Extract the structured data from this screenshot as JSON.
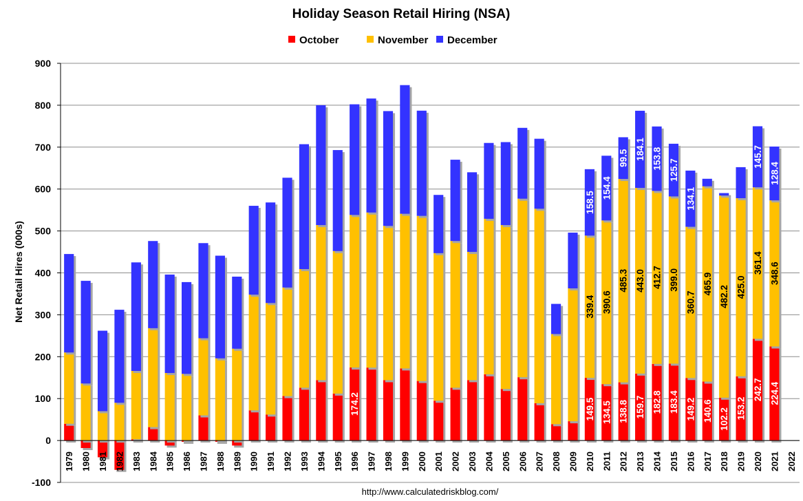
{
  "chart_data": {
    "type": "bar",
    "stacked": true,
    "title": "Holiday Season Retail Hiring (NSA)",
    "ylabel": "Net Retail Hires (000s)",
    "xlabel": "",
    "ylim": [
      -100,
      900
    ],
    "yticks": [
      -100,
      0,
      100,
      200,
      300,
      400,
      500,
      600,
      700,
      800,
      900
    ],
    "grid": "horizontal",
    "legend": "top-center",
    "source": "http://www.calculatedriskblog.com/",
    "categories": [
      "1979",
      "1980",
      "1981",
      "1982",
      "1983",
      "1984",
      "1985",
      "1986",
      "1987",
      "1988",
      "1989",
      "1990",
      "1991",
      "1992",
      "1993",
      "1994",
      "1995",
      "1996",
      "1997",
      "1998",
      "1999",
      "2000",
      "2001",
      "2002",
      "2003",
      "2004",
      "2005",
      "2006",
      "2007",
      "2008",
      "2009",
      "2010",
      "2011",
      "2012",
      "2013",
      "2014",
      "2015",
      "2016",
      "2017",
      "2018",
      "2019",
      "2020",
      "2021",
      "2022"
    ],
    "series": [
      {
        "name": "October",
        "color": "#ff0000",
        "values": [
          40,
          -18,
          -40,
          -70,
          3,
          32,
          -12,
          -3,
          60,
          -3,
          -12,
          72,
          62,
          106,
          126,
          144,
          112,
          174.2,
          174,
          144,
          172,
          142,
          95,
          126,
          144,
          158,
          123,
          151,
          89,
          39,
          46,
          149.5,
          134.5,
          138.8,
          159.7,
          182.8,
          183.4,
          149.2,
          140.6,
          102.2,
          153.2,
          242.7,
          224.4,
          null
        ],
        "labels": [
          null,
          null,
          null,
          null,
          null,
          null,
          null,
          null,
          null,
          null,
          null,
          null,
          null,
          null,
          null,
          null,
          null,
          "174.2",
          null,
          null,
          null,
          null,
          null,
          null,
          null,
          null,
          null,
          null,
          null,
          null,
          null,
          "149.5",
          "134.5",
          "138.8",
          "159.7",
          "182.8",
          "183.4",
          "149.2",
          "140.6",
          "102.2",
          "153.2",
          "242.7",
          "224.4",
          null
        ]
      },
      {
        "name": "November",
        "color": "#ffc000",
        "values": [
          170,
          136,
          70,
          90,
          163,
          236,
          161,
          159,
          184,
          196,
          219,
          276,
          266,
          259,
          283,
          370,
          340,
          364,
          370,
          368,
          369,
          394,
          352,
          350,
          306,
          371,
          391,
          426,
          464,
          215,
          317,
          339.4,
          390.6,
          485.3,
          443.0,
          412.7,
          399.0,
          360.7,
          465.9,
          482.2,
          425.0,
          361.4,
          348.6,
          null
        ],
        "labels": [
          null,
          null,
          null,
          null,
          null,
          null,
          null,
          null,
          null,
          null,
          null,
          null,
          null,
          null,
          null,
          null,
          null,
          null,
          null,
          null,
          null,
          null,
          null,
          null,
          null,
          null,
          null,
          null,
          null,
          null,
          null,
          "339.4",
          "390.6",
          "485.3",
          "443.0",
          "412.7",
          "399.0",
          "360.7",
          "465.9",
          "482.2",
          "425.0",
          "361.4",
          "348.6",
          null
        ]
      },
      {
        "name": "December",
        "color": "#3333ff",
        "values": [
          235,
          245,
          192,
          222,
          259,
          208,
          235,
          219,
          227,
          245,
          172,
          212,
          240,
          262,
          298,
          286,
          241,
          264,
          272,
          274,
          307,
          251,
          139,
          194,
          190,
          181,
          198,
          169,
          167,
          72,
          133,
          158.5,
          154.4,
          99.5,
          184.1,
          153.8,
          125.7,
          134.1,
          18,
          6,
          74,
          145.7,
          128.4,
          null
        ],
        "labels": [
          null,
          null,
          null,
          null,
          null,
          null,
          null,
          null,
          null,
          null,
          null,
          null,
          null,
          null,
          null,
          null,
          null,
          null,
          null,
          null,
          null,
          null,
          null,
          null,
          null,
          null,
          null,
          null,
          null,
          null,
          null,
          "158.5",
          "154.4",
          "99.5",
          "184.1",
          "153.8",
          "125.7",
          "134.1",
          null,
          null,
          null,
          "145.7",
          "128.4",
          null
        ]
      }
    ]
  }
}
